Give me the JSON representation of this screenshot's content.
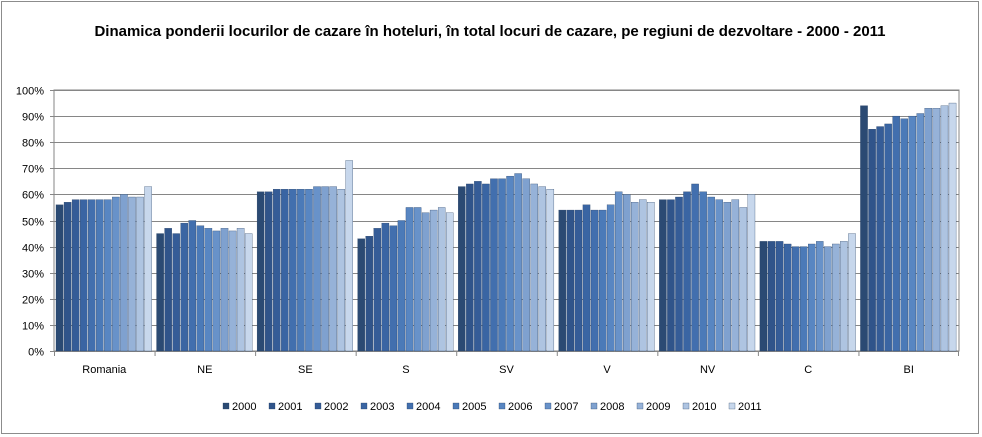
{
  "chart_data": {
    "type": "bar",
    "title": "Dinamica ponderii locurilor de cazare în hoteluri, în total locuri de cazare, pe regiuni de dezvoltare - 2000 - 2011",
    "categories": [
      "Romania",
      "NE",
      "SE",
      "S",
      "SV",
      "V",
      "NV",
      "C",
      "BI"
    ],
    "ylim": [
      0,
      100
    ],
    "yticks": [
      "0%",
      "10%",
      "20%",
      "30%",
      "40%",
      "50%",
      "60%",
      "70%",
      "80%",
      "90%",
      "100%"
    ],
    "grid": true,
    "legend_position": "bottom",
    "series": [
      {
        "name": "2000",
        "color": "#2b4a73",
        "values": [
          56,
          45,
          61,
          43,
          63,
          54,
          58,
          42,
          94
        ]
      },
      {
        "name": "2001",
        "color": "#30548a",
        "values": [
          57,
          47,
          61,
          44,
          64,
          54,
          58,
          42,
          85
        ]
      },
      {
        "name": "2002",
        "color": "#355c97",
        "values": [
          58,
          45,
          62,
          47,
          65,
          54,
          59,
          42,
          86
        ]
      },
      {
        "name": "2003",
        "color": "#3a65a3",
        "values": [
          58,
          49,
          62,
          49,
          64,
          56,
          61,
          41,
          87
        ]
      },
      {
        "name": "2004",
        "color": "#426fae",
        "values": [
          58,
          50,
          62,
          48,
          66,
          54,
          64,
          40,
          90
        ]
      },
      {
        "name": "2005",
        "color": "#4b7ab8",
        "values": [
          58,
          48,
          62,
          50,
          66,
          54,
          61,
          40,
          89
        ]
      },
      {
        "name": "2006",
        "color": "#5886c2",
        "values": [
          58,
          47,
          62,
          55,
          67,
          56,
          59,
          41,
          90
        ]
      },
      {
        "name": "2007",
        "color": "#6892c9",
        "values": [
          59,
          46,
          63,
          55,
          68,
          61,
          58,
          42,
          91
        ]
      },
      {
        "name": "2008",
        "color": "#7fa1cf",
        "values": [
          60,
          47,
          63,
          53,
          66,
          60,
          57,
          40,
          93
        ]
      },
      {
        "name": "2009",
        "color": "#96b2d8",
        "values": [
          59,
          46,
          63,
          54,
          64,
          57,
          58,
          41,
          93
        ]
      },
      {
        "name": "2010",
        "color": "#aec4e1",
        "values": [
          59,
          47,
          62,
          55,
          63,
          58,
          55,
          42,
          94
        ]
      },
      {
        "name": "2011",
        "color": "#c7d7ec",
        "values": [
          63,
          45,
          73,
          53,
          62,
          57,
          60,
          45,
          95
        ]
      }
    ]
  }
}
